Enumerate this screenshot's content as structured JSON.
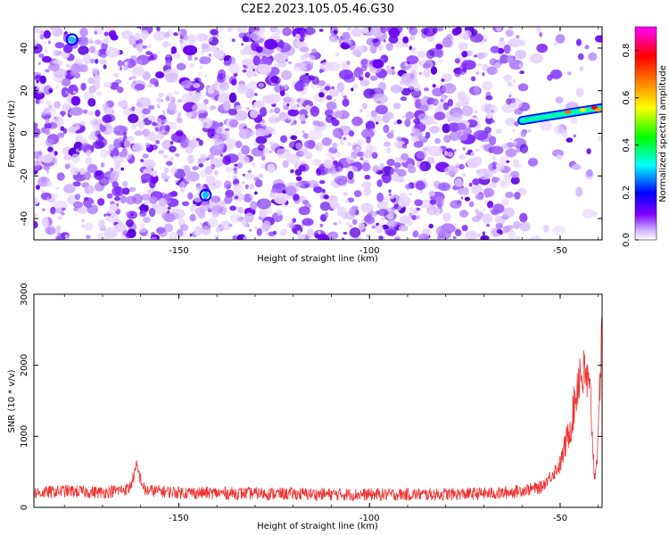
{
  "title": "C2E2.2023.105.05.46.G30",
  "chart_data": [
    {
      "type": "heatmap",
      "xlabel": "Height of straight line (km)",
      "ylabel": "Frequency (Hz)",
      "xlim": [
        -188,
        -39
      ],
      "ylim": [
        -50,
        50
      ],
      "xticks": [
        -150,
        -100,
        -50
      ],
      "yticks": [
        -40,
        -20,
        0,
        20,
        40
      ],
      "colorbar": {
        "label": "Normalized spectral amplitude",
        "range": [
          0,
          0.9
        ],
        "ticks": [
          0.0,
          0.2,
          0.4,
          0.6,
          0.8
        ],
        "colors": [
          "#ffffff",
          "#8000ff",
          "#0000ff",
          "#00ffff",
          "#00ff00",
          "#ffff00",
          "#ff8000",
          "#ff0000",
          "#ff00ff"
        ]
      },
      "features": [
        {
          "x_start": -60,
          "x_end": -39,
          "freq_start": 6,
          "freq_end": 12,
          "max_amplitude": 0.85
        }
      ]
    },
    {
      "type": "line",
      "xlabel": "Height of straight line (km)",
      "ylabel": "SNR (10 * v/v)",
      "xlim": [
        -188,
        -39
      ],
      "ylim": [
        0,
        3000
      ],
      "xticks": [
        -150,
        -100,
        -50
      ],
      "yticks": [
        0,
        1000,
        2000,
        3000
      ],
      "color": "#ee3333",
      "x": [
        -188,
        -180,
        -170,
        -163,
        -161,
        -159,
        -150,
        -140,
        -120,
        -100,
        -80,
        -65,
        -55,
        -50,
        -47,
        -45,
        -43,
        -42,
        -41,
        -40,
        -39
      ],
      "y": [
        200,
        230,
        210,
        260,
        560,
        240,
        210,
        200,
        190,
        180,
        185,
        200,
        280,
        600,
        1200,
        1900,
        1800,
        1500,
        400,
        900,
        2900
      ]
    }
  ]
}
